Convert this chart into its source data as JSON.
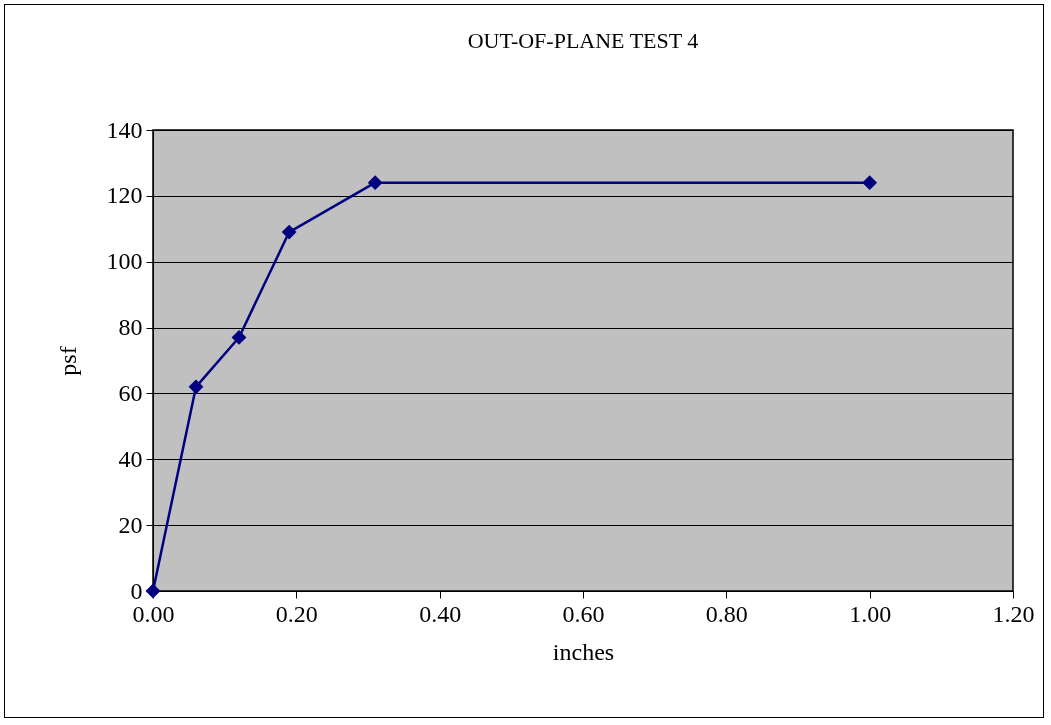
{
  "chart_data": {
    "type": "line",
    "title": "OUT-OF-PLANE TEST 4",
    "xlabel": "inches",
    "ylabel": "psf",
    "x": [
      0,
      0.06,
      0.12,
      0.19,
      0.31,
      1.0
    ],
    "series": [
      {
        "color": "#000080",
        "values": [
          0,
          62,
          77,
          109,
          124,
          124
        ]
      }
    ],
    "xlim": [
      0,
      1.2
    ],
    "xticks": [
      {
        "value": 0,
        "label": "0.00"
      },
      {
        "value": 0.2,
        "label": "0.20"
      },
      {
        "value": 0.4,
        "label": "0.40"
      },
      {
        "value": 0.6,
        "label": "0.60"
      },
      {
        "value": 0.8,
        "label": "0.80"
      },
      {
        "value": 1.0,
        "label": "1.00"
      },
      {
        "value": 1.2,
        "label": "1.20"
      }
    ],
    "ylim": [
      0,
      140
    ],
    "yticks": [
      0,
      20,
      40,
      60,
      80,
      100,
      120,
      140
    ],
    "grid": "y",
    "marker": "diamond",
    "line_style": "solid"
  }
}
